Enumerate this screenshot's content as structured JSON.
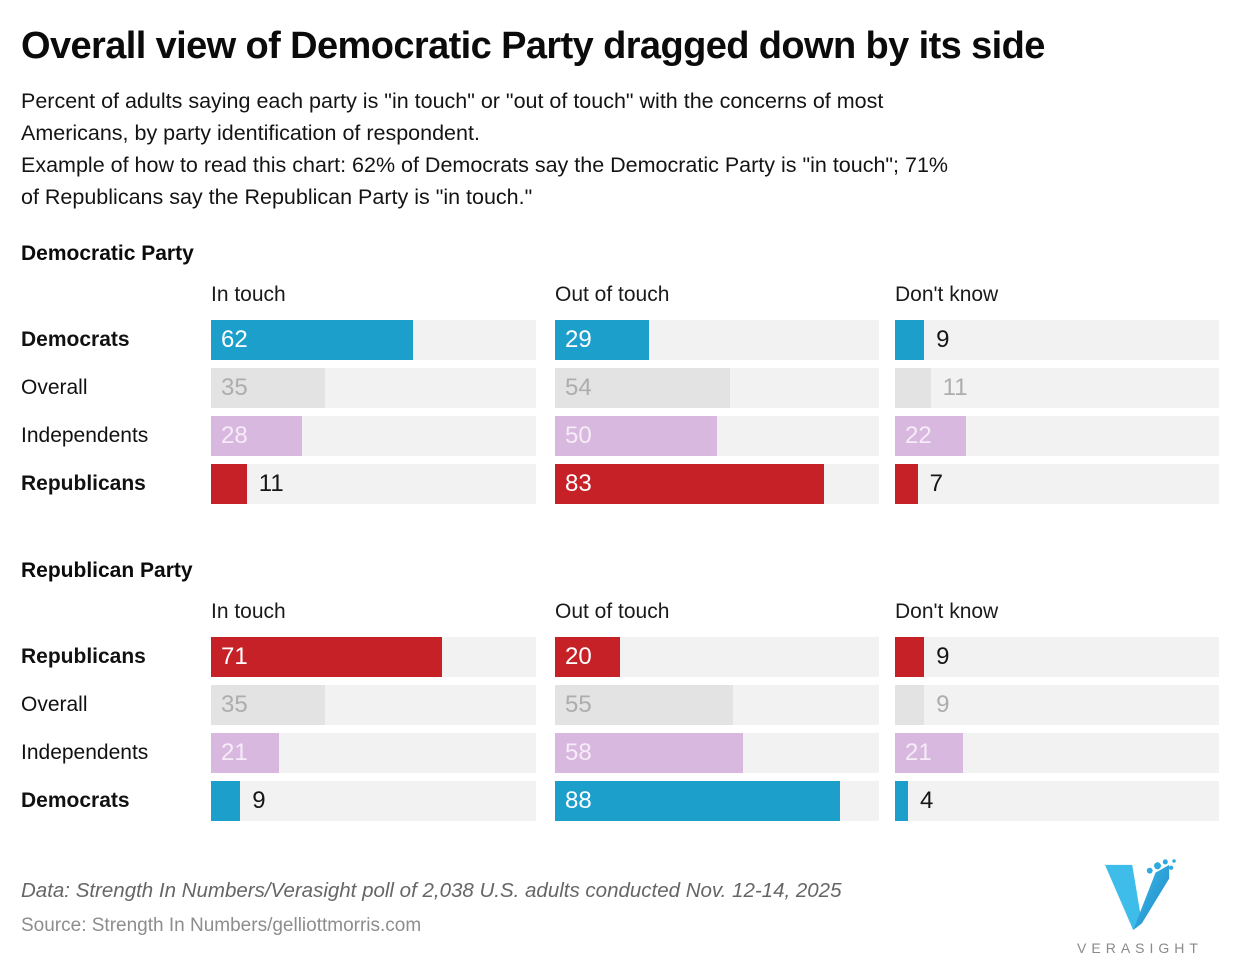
{
  "page": {
    "title": "Overall view of Democratic Party dragged down by its side",
    "subtitle": "Percent of adults saying each party is \"in touch\" or \"out of touch\" with the concerns of most\nAmericans, by party identification of respondent.\nExample of how to read this chart: 62% of Democrats say the Democratic Party is \"in touch\"; 71%\nof Republicans say the Republican Party is \"in touch.\""
  },
  "colors": {
    "track": "#f2f2f2",
    "series": {
      "democrat": {
        "bar": "#1d9fcc",
        "value_text_inside": "#ffffff",
        "value_text_outside": "#161616"
      },
      "overall": {
        "bar": "#e3e3e3",
        "value_text_inside": "#adadad",
        "value_text_outside": "#adadad"
      },
      "independent": {
        "bar": "#d9b8e0",
        "value_text_inside": "#f5ecf7",
        "value_text_outside": "#161616"
      },
      "republican": {
        "bar": "#c62127",
        "value_text_inside": "#ffffff",
        "value_text_outside": "#161616"
      }
    },
    "logo_blue_light": "#3fbdea",
    "logo_blue_dark": "#1b86c6"
  },
  "chart_data": [
    {
      "type": "bar",
      "title": "Democratic Party",
      "columns": [
        "In touch",
        "Out of touch",
        "Don't know"
      ],
      "xlim": [
        0,
        100
      ],
      "rows": [
        {
          "label": "Democrats",
          "bold": true,
          "color_key": "democrat",
          "values": [
            62,
            29,
            9
          ]
        },
        {
          "label": "Overall",
          "bold": false,
          "color_key": "overall",
          "values": [
            35,
            54,
            11
          ]
        },
        {
          "label": "Independents",
          "bold": false,
          "color_key": "independent",
          "values": [
            28,
            50,
            22
          ]
        },
        {
          "label": "Republicans",
          "bold": true,
          "color_key": "republican",
          "values": [
            11,
            83,
            7
          ]
        }
      ]
    },
    {
      "type": "bar",
      "title": "Republican Party",
      "columns": [
        "In touch",
        "Out of touch",
        "Don't know"
      ],
      "xlim": [
        0,
        100
      ],
      "rows": [
        {
          "label": "Republicans",
          "bold": true,
          "color_key": "republican",
          "values": [
            71,
            20,
            9
          ]
        },
        {
          "label": "Overall",
          "bold": false,
          "color_key": "overall",
          "values": [
            35,
            55,
            9
          ]
        },
        {
          "label": "Independents",
          "bold": false,
          "color_key": "independent",
          "values": [
            21,
            58,
            21
          ]
        },
        {
          "label": "Democrats",
          "bold": true,
          "color_key": "democrat",
          "values": [
            9,
            88,
            4
          ]
        }
      ]
    }
  ],
  "footer": {
    "data_note": "Data: Strength In Numbers/Verasight poll of 2,038 U.S. adults conducted Nov. 12-14, 2025",
    "source": "Source: Strength In Numbers/gelliottmorris.com",
    "logo_text": "VERASIGHT"
  }
}
